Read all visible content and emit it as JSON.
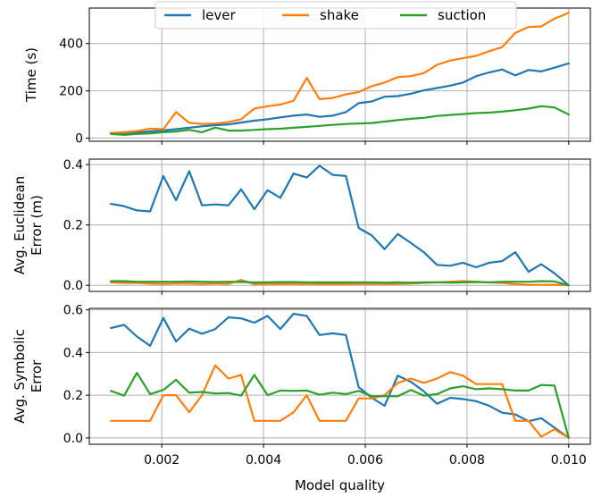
{
  "colors": {
    "lever": "#1f77b4",
    "shake": "#ff7f0e",
    "suction": "#2ca02c",
    "grid": "#b0b0b0"
  },
  "chart_data": [
    {
      "type": "line",
      "xlabel": "",
      "ylabel": [
        "Time (s)"
      ],
      "xlim": [
        0.000575,
        0.010425
      ],
      "ylim": [
        -13,
        550
      ],
      "yticks": [
        0,
        200,
        400
      ],
      "ytick_labels": [
        "0",
        "200",
        "400"
      ],
      "grid": true,
      "legend": {
        "placement": "top-center",
        "entries": [
          "lever",
          "shake",
          "suction"
        ]
      },
      "x": [
        0.001,
        0.00126,
        0.00151,
        0.00177,
        0.00203,
        0.00228,
        0.00254,
        0.00279,
        0.00305,
        0.00331,
        0.00356,
        0.00382,
        0.00408,
        0.00433,
        0.00459,
        0.00485,
        0.0051,
        0.00536,
        0.00562,
        0.00587,
        0.00613,
        0.00638,
        0.00664,
        0.0069,
        0.00715,
        0.00741,
        0.00767,
        0.00792,
        0.00818,
        0.00844,
        0.00869,
        0.00895,
        0.00921,
        0.00946,
        0.00972,
        0.01
      ],
      "series": [
        {
          "name": "lever",
          "values": [
            22,
            18,
            24,
            28,
            33,
            38,
            44,
            50,
            55,
            58,
            66,
            74,
            80,
            88,
            95,
            100,
            90,
            95,
            110,
            148,
            155,
            175,
            178,
            188,
            202,
            212,
            222,
            235,
            262,
            278,
            290,
            265,
            288,
            282,
            298,
            316
          ]
        },
        {
          "name": "shake",
          "values": [
            22,
            25,
            30,
            40,
            38,
            110,
            65,
            60,
            62,
            68,
            80,
            125,
            135,
            142,
            158,
            255,
            165,
            170,
            185,
            195,
            220,
            235,
            258,
            262,
            275,
            310,
            328,
            338,
            348,
            368,
            385,
            445,
            470,
            472,
            505,
            530
          ]
        },
        {
          "name": "suction",
          "values": [
            18,
            14,
            18,
            20,
            25,
            28,
            35,
            25,
            45,
            32,
            32,
            35,
            38,
            40,
            44,
            48,
            52,
            56,
            60,
            62,
            64,
            70,
            76,
            82,
            86,
            94,
            98,
            102,
            106,
            108,
            112,
            118,
            125,
            135,
            130,
            100
          ]
        }
      ]
    },
    {
      "type": "line",
      "xlabel": "",
      "ylabel": [
        "Avg. Euclidean",
        "Error (m)"
      ],
      "xlim": [
        0.000575,
        0.010425
      ],
      "ylim": [
        -0.02,
        0.418
      ],
      "yticks": [
        0.0,
        0.2,
        0.4
      ],
      "ytick_labels": [
        "0.0",
        "0.2",
        "0.4"
      ],
      "grid": true,
      "x": [
        0.001,
        0.00126,
        0.00151,
        0.00177,
        0.00203,
        0.00228,
        0.00254,
        0.00279,
        0.00305,
        0.00331,
        0.00356,
        0.00382,
        0.00408,
        0.00433,
        0.00459,
        0.00485,
        0.0051,
        0.00536,
        0.00562,
        0.00587,
        0.00613,
        0.00638,
        0.00664,
        0.0069,
        0.00715,
        0.00741,
        0.00767,
        0.00792,
        0.00818,
        0.00844,
        0.00869,
        0.00895,
        0.00921,
        0.00946,
        0.00972,
        0.01
      ],
      "series": [
        {
          "name": "lever",
          "values": [
            0.27,
            0.262,
            0.248,
            0.245,
            0.362,
            0.282,
            0.378,
            0.265,
            0.268,
            0.265,
            0.318,
            0.252,
            0.315,
            0.29,
            0.37,
            0.357,
            0.396,
            0.366,
            0.362,
            0.19,
            0.165,
            0.12,
            0.17,
            0.14,
            0.11,
            0.068,
            0.065,
            0.075,
            0.06,
            0.075,
            0.08,
            0.11,
            0.045,
            0.07,
            0.04,
            0.0
          ]
        },
        {
          "name": "shake",
          "values": [
            0.01,
            0.008,
            0.008,
            0.006,
            0.005,
            0.006,
            0.006,
            0.005,
            0.006,
            0.005,
            0.018,
            0.004,
            0.005,
            0.005,
            0.005,
            0.005,
            0.004,
            0.004,
            0.004,
            0.005,
            0.005,
            0.005,
            0.005,
            0.006,
            0.008,
            0.01,
            0.012,
            0.014,
            0.012,
            0.01,
            0.008,
            0.004,
            0.002,
            0.002,
            0.002,
            0.0
          ]
        },
        {
          "name": "suction",
          "values": [
            0.014,
            0.014,
            0.012,
            0.012,
            0.012,
            0.012,
            0.013,
            0.012,
            0.011,
            0.012,
            0.011,
            0.01,
            0.01,
            0.011,
            0.011,
            0.01,
            0.01,
            0.01,
            0.01,
            0.01,
            0.01,
            0.009,
            0.01,
            0.009,
            0.01,
            0.01,
            0.009,
            0.01,
            0.011,
            0.01,
            0.012,
            0.012,
            0.012,
            0.014,
            0.013,
            0.0
          ]
        }
      ]
    },
    {
      "type": "line",
      "xlabel": "Model quality",
      "ylabel": [
        "Avg. Symbolic",
        "Error"
      ],
      "xlim": [
        0.000575,
        0.010425
      ],
      "ylim": [
        -0.03,
        0.607
      ],
      "yticks": [
        0.0,
        0.2,
        0.4,
        0.6
      ],
      "ytick_labels": [
        "0.0",
        "0.2",
        "0.4",
        "0.6"
      ],
      "xticks": [
        0.002,
        0.004,
        0.006,
        0.008,
        0.01
      ],
      "xtick_labels": [
        "0.002",
        "0.004",
        "0.006",
        "0.008",
        "0.010"
      ],
      "grid": true,
      "x": [
        0.001,
        0.00126,
        0.00151,
        0.00177,
        0.00203,
        0.00228,
        0.00254,
        0.00279,
        0.00305,
        0.00331,
        0.00356,
        0.00382,
        0.00408,
        0.00433,
        0.00459,
        0.00485,
        0.0051,
        0.00536,
        0.00562,
        0.00587,
        0.00613,
        0.00638,
        0.00664,
        0.0069,
        0.00715,
        0.00741,
        0.00767,
        0.00792,
        0.00818,
        0.00844,
        0.00869,
        0.00895,
        0.00921,
        0.00946,
        0.00972,
        0.01
      ],
      "series": [
        {
          "name": "lever",
          "values": [
            0.515,
            0.53,
            0.475,
            0.432,
            0.562,
            0.452,
            0.512,
            0.488,
            0.51,
            0.565,
            0.56,
            0.54,
            0.572,
            0.51,
            0.582,
            0.572,
            0.482,
            0.49,
            0.482,
            0.238,
            0.188,
            0.15,
            0.292,
            0.262,
            0.218,
            0.16,
            0.188,
            0.182,
            0.172,
            0.15,
            0.118,
            0.11,
            0.078,
            0.092,
            0.048,
            0.0
          ]
        },
        {
          "name": "shake",
          "values": [
            0.08,
            0.08,
            0.08,
            0.08,
            0.2,
            0.2,
            0.12,
            0.2,
            0.34,
            0.278,
            0.295,
            0.08,
            0.08,
            0.08,
            0.12,
            0.2,
            0.08,
            0.08,
            0.08,
            0.185,
            0.185,
            0.2,
            0.258,
            0.278,
            0.258,
            0.278,
            0.308,
            0.292,
            0.252,
            0.252,
            0.252,
            0.08,
            0.08,
            0.005,
            0.04,
            0.0
          ]
        },
        {
          "name": "suction",
          "values": [
            0.22,
            0.198,
            0.305,
            0.205,
            0.225,
            0.272,
            0.212,
            0.215,
            0.208,
            0.21,
            0.198,
            0.295,
            0.2,
            0.222,
            0.22,
            0.222,
            0.202,
            0.212,
            0.205,
            0.22,
            0.195,
            0.195,
            0.195,
            0.225,
            0.198,
            0.205,
            0.232,
            0.242,
            0.228,
            0.232,
            0.228,
            0.222,
            0.222,
            0.248,
            0.245,
            0.0
          ]
        }
      ]
    }
  ]
}
